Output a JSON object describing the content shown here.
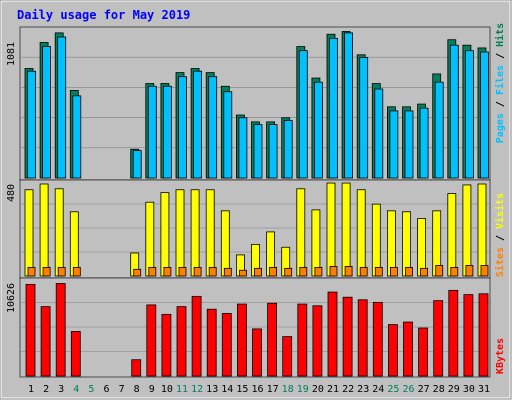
{
  "chart_data": [
    {
      "type": "bar",
      "panel": "top",
      "title": "Daily usage for May 2019",
      "ylabel_parts": [
        "Pages",
        "Files",
        "Hits"
      ],
      "y_tick_label": "1081",
      "ylim": [
        0,
        1081
      ],
      "categories": [
        "1",
        "2",
        "3",
        "4",
        "5",
        "6",
        "7",
        "8",
        "9",
        "10",
        "11",
        "12",
        "13",
        "14",
        "15",
        "16",
        "17",
        "18",
        "19",
        "20",
        "21",
        "22",
        "23",
        "24",
        "25",
        "26",
        "27",
        "28",
        "29",
        "30",
        "31"
      ],
      "series": [
        {
          "name": "Hits",
          "values": [
            800,
            990,
            1060,
            640,
            0,
            0,
            0,
            210,
            690,
            690,
            770,
            800,
            770,
            670,
            460,
            410,
            410,
            440,
            960,
            730,
            1050,
            1070,
            900,
            690,
            520,
            520,
            540,
            760,
            1010,
            970,
            950
          ]
        },
        {
          "name": "Files",
          "values": [
            780,
            960,
            1030,
            600,
            0,
            0,
            0,
            200,
            670,
            670,
            740,
            780,
            740,
            630,
            440,
            390,
            390,
            420,
            930,
            700,
            1020,
            1060,
            880,
            650,
            490,
            490,
            510,
            700,
            970,
            930,
            920
          ]
        }
      ]
    },
    {
      "type": "bar",
      "panel": "middle",
      "ylabel_parts": [
        "Sites",
        "Visits"
      ],
      "y_tick_label": "480",
      "ylim": [
        0,
        480
      ],
      "categories": [
        "1",
        "2",
        "3",
        "4",
        "5",
        "6",
        "7",
        "8",
        "9",
        "10",
        "11",
        "12",
        "13",
        "14",
        "15",
        "16",
        "17",
        "18",
        "19",
        "20",
        "21",
        "22",
        "23",
        "24",
        "25",
        "26",
        "27",
        "28",
        "29",
        "30",
        "31"
      ],
      "series": [
        {
          "name": "Visits",
          "values": [
            450,
            480,
            455,
            335,
            0,
            0,
            0,
            120,
            385,
            435,
            450,
            450,
            450,
            340,
            110,
            165,
            230,
            150,
            455,
            345,
            485,
            485,
            450,
            375,
            340,
            335,
            300,
            340,
            430,
            475,
            480
          ]
        },
        {
          "name": "Sites",
          "values": [
            45,
            45,
            45,
            45,
            0,
            0,
            0,
            35,
            45,
            45,
            45,
            45,
            45,
            40,
            30,
            40,
            45,
            40,
            45,
            45,
            50,
            50,
            45,
            45,
            45,
            45,
            40,
            55,
            45,
            55,
            55
          ]
        }
      ]
    },
    {
      "type": "bar",
      "panel": "bottom",
      "ylabel_parts": [
        "KBytes"
      ],
      "y_tick_label": "10626",
      "ylim": [
        0,
        10626
      ],
      "categories": [
        "1",
        "2",
        "3",
        "4",
        "5",
        "6",
        "7",
        "8",
        "9",
        "10",
        "11",
        "12",
        "13",
        "14",
        "15",
        "16",
        "17",
        "18",
        "19",
        "20",
        "21",
        "22",
        "23",
        "24",
        "25",
        "26",
        "27",
        "28",
        "29",
        "30",
        "31"
      ],
      "series": [
        {
          "name": "KBytes",
          "values": [
            10700,
            8100,
            10800,
            5200,
            0,
            0,
            0,
            1900,
            8300,
            7200,
            8100,
            9300,
            7800,
            7300,
            8400,
            5500,
            8500,
            4600,
            8400,
            8200,
            9800,
            9200,
            8900,
            8600,
            6000,
            6300,
            5600,
            8800,
            10000,
            9500,
            9600
          ]
        }
      ]
    }
  ],
  "x_labels": [
    {
      "label": "1",
      "weekend": false
    },
    {
      "label": "2",
      "weekend": false
    },
    {
      "label": "3",
      "weekend": false
    },
    {
      "label": "4",
      "weekend": true
    },
    {
      "label": "5",
      "weekend": true
    },
    {
      "label": "6",
      "weekend": false
    },
    {
      "label": "7",
      "weekend": false
    },
    {
      "label": "8",
      "weekend": false
    },
    {
      "label": "9",
      "weekend": false
    },
    {
      "label": "10",
      "weekend": false
    },
    {
      "label": "11",
      "weekend": true
    },
    {
      "label": "12",
      "weekend": true
    },
    {
      "label": "13",
      "weekend": false
    },
    {
      "label": "14",
      "weekend": false
    },
    {
      "label": "15",
      "weekend": false
    },
    {
      "label": "16",
      "weekend": false
    },
    {
      "label": "17",
      "weekend": false
    },
    {
      "label": "18",
      "weekend": true
    },
    {
      "label": "19",
      "weekend": true
    },
    {
      "label": "20",
      "weekend": false
    },
    {
      "label": "21",
      "weekend": false
    },
    {
      "label": "22",
      "weekend": false
    },
    {
      "label": "23",
      "weekend": false
    },
    {
      "label": "24",
      "weekend": false
    },
    {
      "label": "25",
      "weekend": true
    },
    {
      "label": "26",
      "weekend": true
    },
    {
      "label": "27",
      "weekend": false
    },
    {
      "label": "28",
      "weekend": false
    },
    {
      "label": "29",
      "weekend": false
    },
    {
      "label": "30",
      "weekend": false
    },
    {
      "label": "31",
      "weekend": false
    }
  ],
  "colors": {
    "background": "#c0c0c0",
    "plot_background": "#c0c0c0",
    "title": "#0000ff",
    "hits": "#00805c",
    "files": "#00c0ff",
    "pages": "#00c0ff",
    "visits": "#ffff00",
    "sites": "#ff8000",
    "kbytes": "#ff0000",
    "label_text": "#000000",
    "weekend_text": "#00805c",
    "separator": "#ffffff",
    "slash": "#000000"
  },
  "grid": true
}
